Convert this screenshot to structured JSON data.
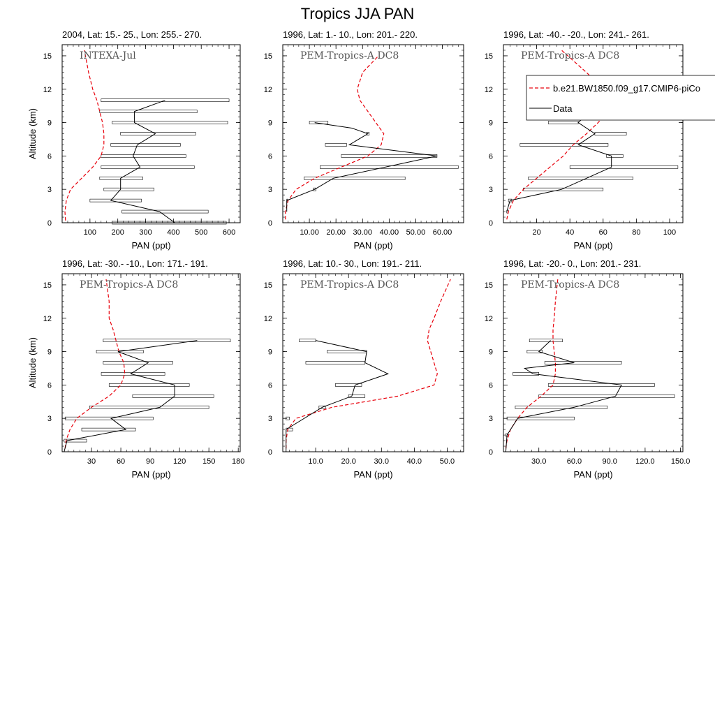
{
  "title": "Tropics JJA PAN",
  "legend": {
    "model_label": "b.e21.BW1850.f09_g17.CMIP6-piCo",
    "data_label": "Data",
    "model_color": "#e8000b",
    "data_color": "#000000"
  },
  "chart_data": [
    {
      "type": "line",
      "title": "2004, Lat: 15.- 25., Lon: 255.- 270.",
      "annotation": "INTEXA-Jul",
      "xlabel": "PAN (ppt)",
      "ylabel": "Altitude (km)",
      "xlim": [
        0,
        640
      ],
      "ylim": [
        0,
        16
      ],
      "xticks": [
        100,
        200,
        300,
        400,
        500,
        600
      ],
      "xtick_labels": [
        "100",
        "200",
        "300",
        "400",
        "500",
        "600"
      ],
      "yticks": [
        0,
        3,
        6,
        9,
        12,
        15
      ],
      "model": {
        "x": [
          12,
          10,
          15,
          30,
          70,
          110,
          140,
          150,
          150,
          145,
          135,
          125,
          110,
          95,
          80
        ],
        "y": [
          0.2,
          1,
          2,
          3,
          4,
          5,
          6,
          7,
          8,
          9,
          10,
          11,
          12,
          13.5,
          15.5
        ]
      },
      "obs": {
        "x": [
          405,
          350,
          175,
          210,
          210,
          280,
          255,
          270,
          335,
          260,
          260,
          370
        ],
        "y": [
          0,
          1,
          2,
          3,
          4,
          5,
          6,
          7,
          8,
          9,
          10,
          11
        ]
      },
      "ranges": [
        [
          180,
          590,
          0
        ],
        [
          215,
          525,
          1
        ],
        [
          100,
          285,
          2
        ],
        [
          150,
          330,
          3
        ],
        [
          135,
          290,
          4
        ],
        [
          140,
          475,
          5
        ],
        [
          140,
          445,
          6
        ],
        [
          175,
          425,
          7
        ],
        [
          210,
          480,
          8
        ],
        [
          180,
          595,
          9
        ],
        [
          135,
          485,
          10
        ],
        [
          140,
          600,
          11
        ]
      ]
    },
    {
      "type": "line",
      "title": "1996, Lat: 1.- 10., Lon: 201.- 220.",
      "annotation": "PEM-Tropics-A DC8",
      "xlabel": "PAN (ppt)",
      "ylabel": "",
      "xlim": [
        0,
        68
      ],
      "ylim": [
        0,
        16
      ],
      "xticks": [
        10,
        20,
        30,
        40,
        50,
        60
      ],
      "xtick_labels": [
        "10.00",
        "20.00",
        "30.00",
        "40.00",
        "50.00",
        "60.00"
      ],
      "yticks": [
        0,
        3,
        6,
        9,
        12,
        15
      ],
      "model": {
        "x": [
          1,
          1,
          2,
          5,
          12,
          22,
          32,
          37,
          38,
          35,
          32,
          29,
          28,
          30,
          36
        ],
        "y": [
          0.3,
          1,
          2,
          3,
          4,
          5,
          6,
          7,
          8,
          9,
          10,
          11,
          12,
          13.5,
          15
        ]
      },
      "obs": {
        "x": [
          1.5,
          1.5,
          12,
          19,
          58,
          25,
          32,
          26,
          12
        ],
        "y": [
          1,
          2,
          3,
          4,
          6,
          7,
          8,
          8.5,
          9
        ]
      },
      "ranges": [
        [
          1.5,
          1.8,
          2
        ],
        [
          11.5,
          12.5,
          3
        ],
        [
          8,
          46,
          4
        ],
        [
          14,
          66,
          5
        ],
        [
          22,
          58,
          6
        ],
        [
          16,
          24,
          7
        ],
        [
          31.5,
          32.5,
          8
        ],
        [
          10,
          17,
          9
        ]
      ]
    },
    {
      "type": "line",
      "title": "1996, Lat: -40.- -20., Lon: 241.- 261.",
      "annotation": "PEM-Tropics-A DC8",
      "xlabel": "PAN (ppt)",
      "ylabel": "",
      "xlim": [
        0,
        108
      ],
      "ylim": [
        0,
        16
      ],
      "xticks": [
        20,
        40,
        60,
        80,
        100
      ],
      "xtick_labels": [
        "20",
        "40",
        "60",
        "80",
        "100"
      ],
      "yticks": [
        0,
        3,
        6,
        9,
        12,
        15
      ],
      "model": {
        "x": [
          2,
          3,
          6,
          12,
          20,
          28,
          36,
          42,
          50,
          57,
          63,
          65,
          60,
          50,
          35
        ],
        "y": [
          0.3,
          1,
          2,
          3,
          4,
          5,
          6,
          7,
          8,
          9,
          10,
          11,
          12,
          13.5,
          15.5
        ]
      },
      "obs": {
        "x": [
          2,
          4,
          35,
          50,
          65,
          65,
          45,
          55,
          45,
          52
        ],
        "y": [
          1,
          2,
          3,
          4,
          5,
          6,
          7,
          8,
          9,
          10
        ]
      },
      "ranges": [
        [
          2,
          3,
          1
        ],
        [
          3,
          5,
          2
        ],
        [
          12,
          60,
          3
        ],
        [
          15,
          78,
          4
        ],
        [
          40,
          105,
          5
        ],
        [
          62,
          72,
          6
        ],
        [
          10,
          63,
          7
        ],
        [
          55,
          74,
          8
        ],
        [
          27,
          45,
          9
        ],
        [
          48,
          59,
          10
        ]
      ]
    },
    {
      "type": "line",
      "title": "1996, Lat: -30.- -10., Lon: 171.- 191.",
      "annotation": "PEM-Tropics-A DC8",
      "xlabel": "PAN (ppt)",
      "ylabel": "Altitude (km)",
      "xlim": [
        0,
        182
      ],
      "ylim": [
        0,
        16
      ],
      "xticks": [
        30,
        60,
        90,
        120,
        150,
        180
      ],
      "xtick_labels": [
        "30",
        "60",
        "90",
        "120",
        "150",
        "180"
      ],
      "yticks": [
        0,
        3,
        6,
        9,
        12,
        15
      ],
      "model": {
        "x": [
          3,
          4,
          8,
          15,
          30,
          48,
          60,
          64,
          63,
          58,
          55,
          52,
          48,
          48,
          45
        ],
        "y": [
          0.3,
          1,
          2,
          3,
          4,
          5,
          6,
          7,
          8,
          9,
          10,
          11,
          12,
          13.5,
          15.5
        ]
      },
      "obs": {
        "x": [
          2,
          5,
          65,
          50,
          100,
          115,
          115,
          70,
          88,
          57,
          138
        ],
        "y": [
          0,
          1,
          2,
          3,
          4,
          5,
          6,
          7,
          8,
          9,
          10
        ]
      },
      "ranges": [
        [
          2,
          25,
          1
        ],
        [
          20,
          75,
          2
        ],
        [
          3,
          93,
          3
        ],
        [
          28,
          150,
          4
        ],
        [
          72,
          155,
          5
        ],
        [
          48,
          130,
          6
        ],
        [
          40,
          105,
          7
        ],
        [
          42,
          113,
          8
        ],
        [
          35,
          83,
          9
        ],
        [
          42,
          172,
          10
        ]
      ]
    },
    {
      "type": "line",
      "title": "1996, Lat: 10.- 30., Lon: 191.- 211.",
      "annotation": "PEM-Tropics-A DC8",
      "xlabel": "PAN (ppt)",
      "ylabel": "",
      "xlim": [
        0,
        55
      ],
      "ylim": [
        0,
        16
      ],
      "xticks": [
        10,
        20,
        30,
        40,
        50
      ],
      "xtick_labels": [
        "10.0",
        "20.0",
        "30.0",
        "40.0",
        "50.0"
      ],
      "yticks": [
        0,
        3,
        6,
        9,
        12,
        15
      ],
      "model": {
        "x": [
          1,
          1,
          1.5,
          4,
          15,
          35,
          46,
          47,
          46,
          45,
          44,
          44.5,
          46,
          48,
          51
        ],
        "y": [
          0.3,
          1,
          2,
          3,
          4,
          5,
          6,
          7,
          8,
          9,
          10,
          11,
          12,
          13.5,
          15.5
        ]
      },
      "obs": {
        "x": [
          1,
          1,
          1,
          12,
          21,
          22,
          32,
          25,
          25.5,
          10
        ],
        "y": [
          0,
          1,
          2,
          4,
          5,
          6,
          7,
          8,
          9,
          10
        ]
      },
      "ranges": [
        [
          1,
          3,
          2
        ],
        [
          1,
          2,
          3
        ],
        [
          11,
          13,
          4
        ],
        [
          20,
          25,
          5
        ],
        [
          16,
          24,
          6
        ],
        [
          7,
          25,
          8
        ],
        [
          13.5,
          25.5,
          9
        ],
        [
          5,
          10,
          10
        ]
      ]
    },
    {
      "type": "line",
      "title": "1996, Lat: -20.- 0., Lon: 201.- 231.",
      "annotation": "PEM-Tropics-A DC8",
      "xlabel": "PAN (ppt)",
      "ylabel": "",
      "xlim": [
        0,
        152
      ],
      "ylim": [
        0,
        16
      ],
      "xticks": [
        30,
        60,
        90,
        120,
        150
      ],
      "xtick_labels": [
        "30.0",
        "60.0",
        "90.0",
        "120.0",
        "150.0"
      ],
      "yticks": [
        0,
        3,
        6,
        9,
        12,
        15
      ],
      "model": {
        "x": [
          2,
          3,
          6,
          12,
          20,
          32,
          42,
          44,
          44,
          43,
          42,
          42,
          43,
          44,
          46
        ],
        "y": [
          0.3,
          1,
          2,
          3,
          4,
          5,
          6,
          7,
          8,
          9,
          10,
          11,
          12,
          13.5,
          15.5
        ]
      },
      "obs": {
        "x": [
          2,
          3,
          12,
          60,
          95,
          100,
          25,
          18,
          60,
          30,
          40
        ],
        "y": [
          0,
          1.5,
          3,
          4,
          5,
          6,
          7,
          7.5,
          8,
          9,
          10
        ]
      },
      "ranges": [
        [
          2,
          4,
          1.5
        ],
        [
          3,
          60,
          3
        ],
        [
          10,
          88,
          4
        ],
        [
          30,
          145,
          5
        ],
        [
          38,
          128,
          6
        ],
        [
          8,
          30,
          7
        ],
        [
          35,
          100,
          8
        ],
        [
          20,
          33,
          9
        ],
        [
          22,
          50,
          10
        ]
      ]
    }
  ]
}
